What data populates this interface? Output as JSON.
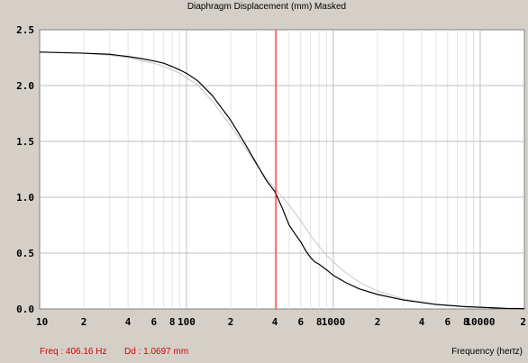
{
  "window": {
    "title": "Diaphragm Displacement (mm)",
    "mode": "Masked"
  },
  "status": {
    "freq_label": "Freq : 406.16 Hz",
    "disp_label": "Dd : 1.0697 mm"
  },
  "colors": {
    "background": "#d4d0c8",
    "plot_bg": "#ffffff",
    "grid_major": "#bfbfbf",
    "grid_minor": "#e2e2e2",
    "main_curve": "#000000",
    "reference_curve": "#c8c8c8",
    "cursor": "#ff0000",
    "status_text": "#d40000"
  },
  "chart_data": {
    "type": "line",
    "title": "Diaphragm Displacement (mm)   Masked",
    "xlabel": "Frequency (hertz)",
    "ylabel": "",
    "xscale": "log",
    "xlim": [
      10,
      20000
    ],
    "ylim": [
      0,
      2.5
    ],
    "grid": true,
    "y_ticks": [
      "0.0",
      "0.5",
      "1.0",
      "1.5",
      "2.0",
      "2.5"
    ],
    "y_tick_values": [
      0,
      0.5,
      1.0,
      1.5,
      2.0,
      2.5
    ],
    "x_ticks": [
      {
        "value": 10,
        "label": "10"
      },
      {
        "value": 20,
        "label": "2"
      },
      {
        "value": 40,
        "label": "4"
      },
      {
        "value": 60,
        "label": "6"
      },
      {
        "value": 80,
        "label": "8"
      },
      {
        "value": 100,
        "label": "100"
      },
      {
        "value": 200,
        "label": "2"
      },
      {
        "value": 400,
        "label": "4"
      },
      {
        "value": 600,
        "label": "6"
      },
      {
        "value": 800,
        "label": "8"
      },
      {
        "value": 1000,
        "label": "1000"
      },
      {
        "value": 2000,
        "label": "2"
      },
      {
        "value": 4000,
        "label": "4"
      },
      {
        "value": 6000,
        "label": "6"
      },
      {
        "value": 8000,
        "label": "8"
      },
      {
        "value": 10000,
        "label": "10000"
      },
      {
        "value": 20000,
        "label": "2"
      }
    ],
    "cursor_x": 406.16,
    "series": [
      {
        "x": [
          10,
          20,
          30,
          40,
          50,
          60,
          70,
          80,
          90,
          100,
          120,
          150,
          200,
          250,
          300,
          350,
          400,
          450,
          500,
          550,
          600,
          650,
          700,
          750,
          800,
          900,
          1000,
          1200,
          1500,
          2000,
          3000,
          5000,
          8000,
          10000,
          15000,
          20000
        ],
        "y": [
          2.3,
          2.29,
          2.28,
          2.26,
          2.24,
          2.22,
          2.2,
          2.17,
          2.14,
          2.11,
          2.04,
          1.91,
          1.69,
          1.48,
          1.3,
          1.15,
          1.05,
          0.9,
          0.75,
          0.67,
          0.6,
          0.52,
          0.46,
          0.42,
          0.4,
          0.35,
          0.3,
          0.24,
          0.18,
          0.13,
          0.08,
          0.04,
          0.02,
          0.015,
          0.005,
          0.003
        ]
      },
      {
        "x": [
          10,
          20,
          30,
          40,
          50,
          60,
          70,
          80,
          90,
          100,
          120,
          150,
          200,
          250,
          300,
          350,
          400,
          500,
          600,
          700,
          800,
          900,
          1000,
          1200,
          1500,
          2000,
          3000,
          5000,
          8000,
          10000,
          15000,
          20000
        ],
        "y": [
          2.3,
          2.29,
          2.27,
          2.25,
          2.22,
          2.2,
          2.17,
          2.14,
          2.11,
          2.07,
          2.0,
          1.86,
          1.64,
          1.45,
          1.29,
          1.17,
          1.08,
          0.93,
          0.79,
          0.66,
          0.56,
          0.48,
          0.42,
          0.33,
          0.24,
          0.16,
          0.09,
          0.045,
          0.02,
          0.015,
          0.005,
          0.003
        ]
      }
    ]
  }
}
